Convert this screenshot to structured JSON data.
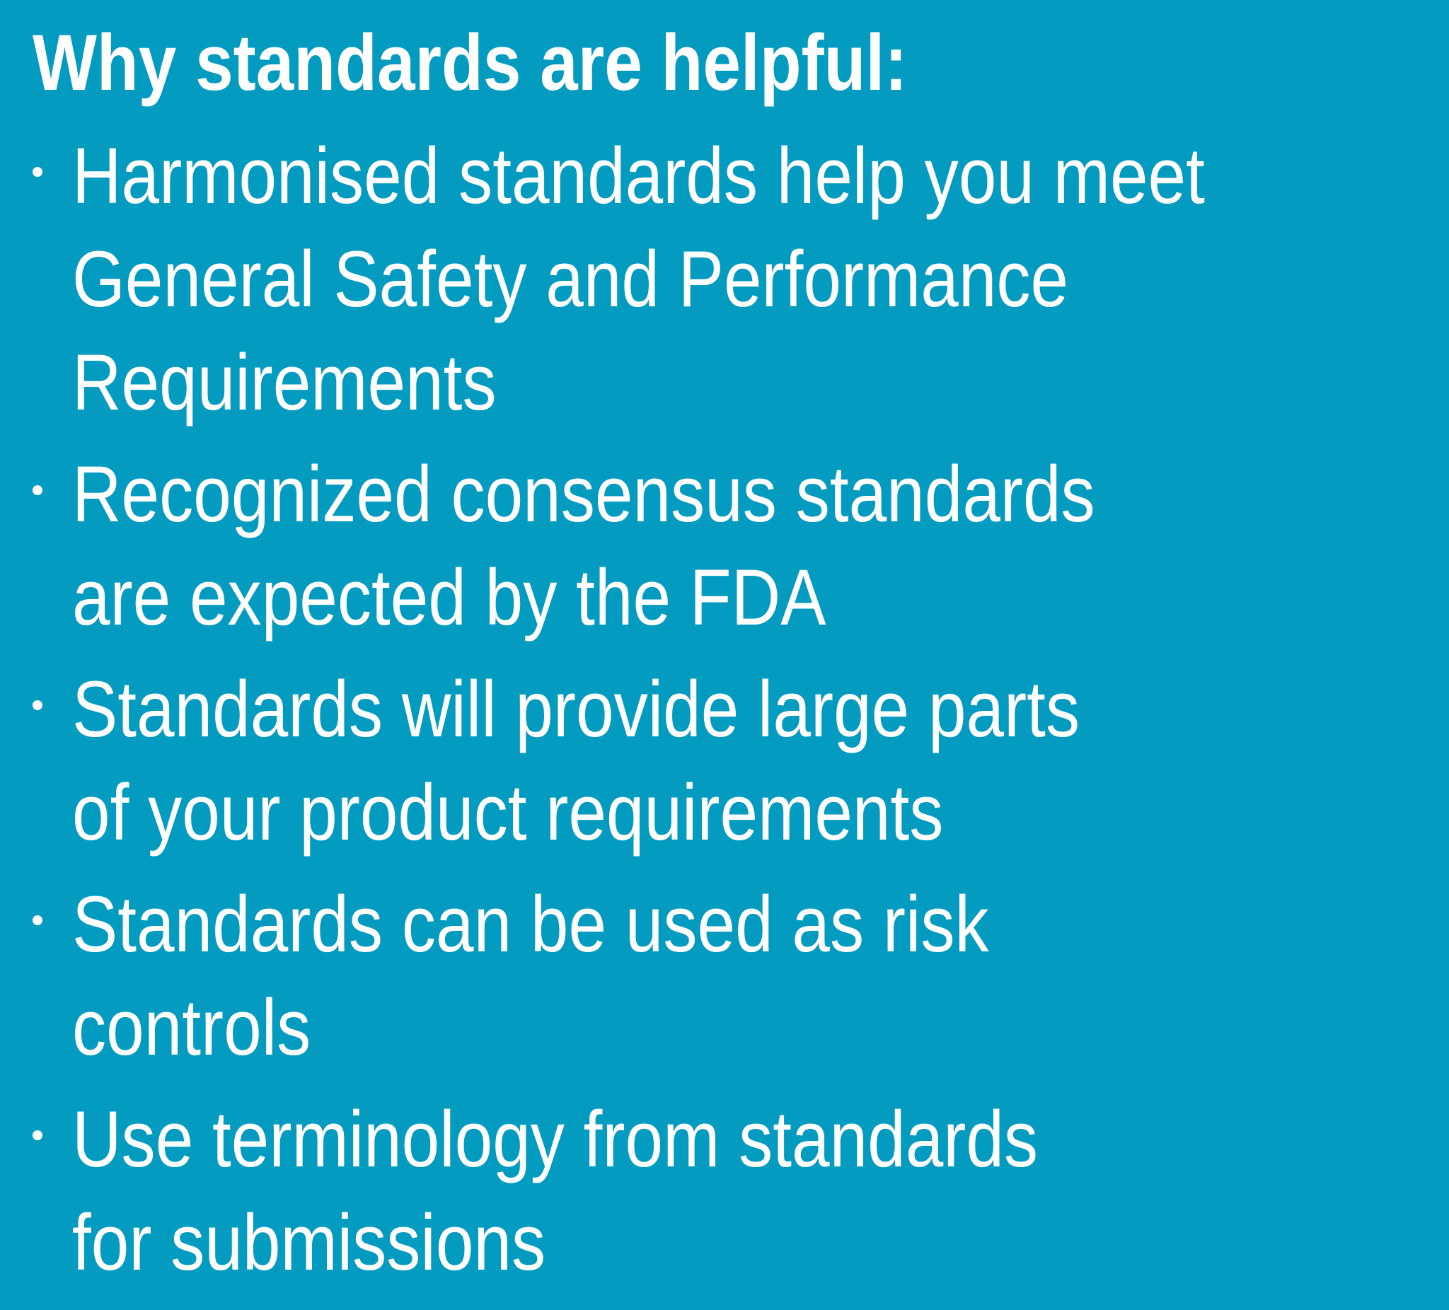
{
  "slide": {
    "background_color": "#039bc0",
    "text_color": "#ffffff",
    "heading": "Why standards are helpful:",
    "bullets": [
      {
        "lines": [
          "Harmonised standards help you meet",
          "General Safety and Performance",
          "Requirements"
        ]
      },
      {
        "lines": [
          "Recognized consensus standards",
          "are expected by the FDA"
        ]
      },
      {
        "lines": [
          "Standards will provide large parts",
          "of your product requirements"
        ]
      },
      {
        "lines": [
          "Standards can be used as risk",
          "controls"
        ]
      },
      {
        "lines": [
          "Use terminology from standards",
          "for submissions"
        ]
      }
    ]
  }
}
